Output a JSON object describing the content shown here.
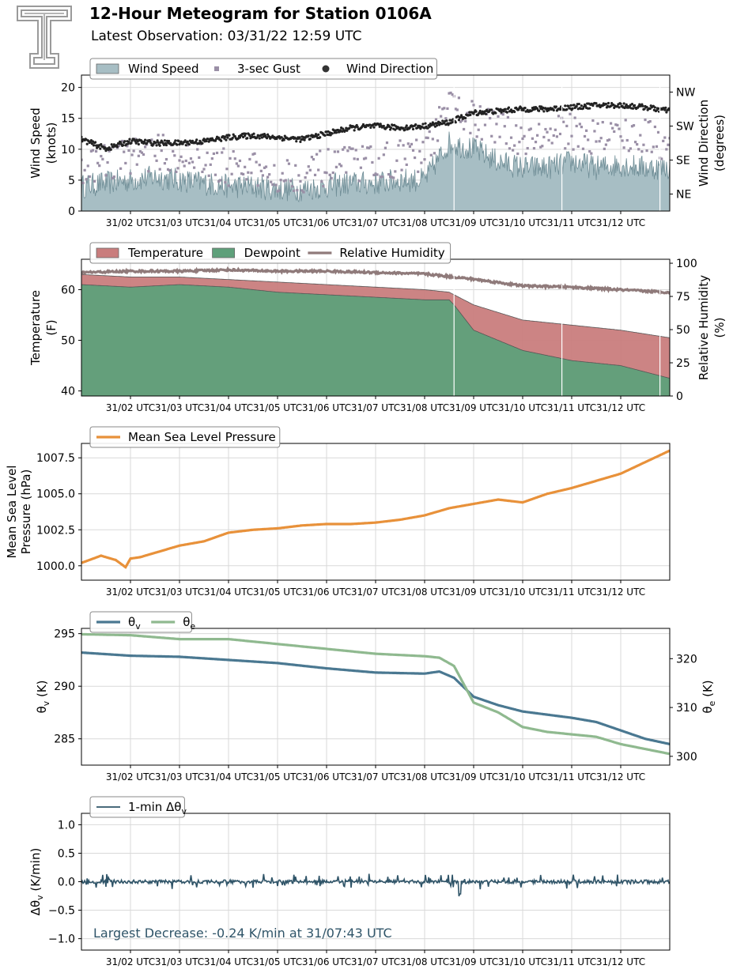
{
  "header": {
    "title": "12-Hour Meteogram for Station 0106A",
    "subtitle": "Latest Observation: 03/31/22 12:59 UTC",
    "logo": "texas-tech-double-t-logo"
  },
  "chart_data": [
    {
      "type": "area",
      "name": "wind",
      "ylabel": [
        "Wind Speed",
        "(knots)"
      ],
      "ylim": [
        0,
        22
      ],
      "yticks": [
        0,
        5,
        10,
        15,
        20
      ],
      "ylabel2": [
        "Wind Direction",
        "(degrees)"
      ],
      "y2lim": [
        0,
        360
      ],
      "y2ticks": [
        {
          "value": 45,
          "label": "NE"
        },
        {
          "value": 135,
          "label": "SE"
        },
        {
          "value": 225,
          "label": "SW"
        },
        {
          "value": 315,
          "label": "NW"
        }
      ],
      "legend": {
        "placement": "top-left",
        "entries": [
          {
            "label": "Wind Speed",
            "kind": "patch",
            "color": "#a7bec4"
          },
          {
            "label": "3-sec Gust",
            "kind": "square",
            "color": "#9a8fa6"
          },
          {
            "label": "Wind Direction",
            "kind": "dot",
            "color": "#333333"
          }
        ]
      },
      "series": [
        {
          "name": "Wind Speed",
          "color": "#a7bec4",
          "x": [
            0,
            0.5,
            1,
            1.5,
            2,
            2.5,
            3,
            3.5,
            4,
            4.5,
            5,
            5.5,
            6,
            6.5,
            7,
            7.5,
            8,
            8.5,
            9,
            9.5,
            10,
            10.5,
            11,
            11.5,
            12
          ],
          "values": [
            4,
            4.5,
            5,
            5.5,
            5,
            4.5,
            4,
            4,
            3.5,
            3.5,
            4,
            4.5,
            4.5,
            5,
            5,
            11,
            10,
            8,
            7,
            7,
            8,
            7,
            7.5,
            7,
            7
          ]
        },
        {
          "name": "3-sec Gust",
          "color": "#9a8fa6",
          "x": [
            0,
            0.5,
            1,
            1.5,
            2,
            2.5,
            3,
            3.5,
            4,
            4.5,
            5,
            5.5,
            6,
            6.5,
            7,
            7.5,
            8,
            8.5,
            9,
            9.5,
            10,
            10.5,
            11,
            11.5,
            12
          ],
          "values": [
            7,
            8,
            9,
            9.5,
            9,
            8,
            7,
            6.5,
            6,
            6,
            7,
            7.5,
            8,
            8.5,
            9,
            17,
            15,
            13,
            12,
            12,
            13,
            12,
            12.5,
            12,
            11
          ]
        },
        {
          "name": "Wind Direction",
          "color": "#222222",
          "x": [
            0,
            0.5,
            1,
            1.5,
            2,
            2.5,
            3,
            3.5,
            4,
            4.5,
            5,
            5.5,
            6,
            6.5,
            7,
            7.5,
            8,
            8.5,
            9,
            9.5,
            10,
            10.5,
            11,
            11.5,
            12
          ],
          "values": [
            190,
            165,
            185,
            180,
            180,
            185,
            195,
            200,
            195,
            190,
            205,
            220,
            225,
            220,
            225,
            235,
            260,
            265,
            270,
            270,
            275,
            280,
            280,
            275,
            265
          ]
        }
      ],
      "gaps": [
        7.6,
        9.8,
        11.8
      ]
    },
    {
      "type": "area",
      "name": "temperature",
      "ylabel": [
        "Temperature",
        "(F)"
      ],
      "ylim": [
        39,
        66
      ],
      "yticks": [
        40,
        50,
        60
      ],
      "ylabel2": [
        "Relative Humidity",
        "(%)"
      ],
      "y2lim": [
        0,
        103
      ],
      "y2ticks": [
        {
          "value": 0,
          "label": "0"
        },
        {
          "value": 25,
          "label": "25"
        },
        {
          "value": 50,
          "label": "50"
        },
        {
          "value": 75,
          "label": "75"
        },
        {
          "value": 100,
          "label": "100"
        }
      ],
      "legend": {
        "placement": "top-left",
        "entries": [
          {
            "label": "Temperature",
            "kind": "patch",
            "color": "#c97d7d"
          },
          {
            "label": "Dewpoint",
            "kind": "patch",
            "color": "#5ea07a"
          },
          {
            "label": "Relative Humidity",
            "kind": "line",
            "color": "#8f7a7a"
          }
        ]
      },
      "series": [
        {
          "name": "Temperature",
          "color": "#c97d7d",
          "x": [
            0,
            1,
            2,
            3,
            4,
            5,
            6,
            7,
            7.5,
            8,
            9,
            10,
            11,
            12
          ],
          "values": [
            63,
            62.5,
            62.5,
            62,
            61.5,
            61,
            60.5,
            60,
            59.5,
            57,
            54,
            53,
            52,
            50.5
          ]
        },
        {
          "name": "Dewpoint",
          "color": "#5ea07a",
          "x": [
            0,
            1,
            2,
            3,
            4,
            5,
            6,
            7,
            7.5,
            7.6,
            8,
            9,
            10,
            11,
            12
          ],
          "values": [
            61,
            60.5,
            61,
            60.5,
            59.5,
            59,
            58.5,
            58,
            58,
            57,
            52,
            48,
            46,
            45,
            42.5
          ]
        },
        {
          "name": "Relative Humidity",
          "color": "#8f7a7a",
          "x": [
            0,
            1,
            2,
            3,
            4,
            5,
            6,
            7,
            7.5,
            8,
            9,
            10,
            11,
            12
          ],
          "values": [
            93,
            94,
            94,
            95,
            94,
            94,
            93,
            92,
            90,
            88,
            83,
            82,
            80,
            78
          ]
        }
      ],
      "gaps": [
        7.6,
        9.8,
        11.8
      ]
    },
    {
      "type": "line",
      "name": "pressure",
      "ylabel": [
        "Mean Sea Level",
        "Pressure (hPa)"
      ],
      "ylim": [
        999.0,
        1008.5
      ],
      "yticks": [
        {
          "value": 1000,
          "label": "1000.0"
        },
        {
          "value": 1002.5,
          "label": "1002.5"
        },
        {
          "value": 1005,
          "label": "1005.0"
        },
        {
          "value": 1007.5,
          "label": "1007.5"
        }
      ],
      "legend": {
        "placement": "top-left",
        "entries": [
          {
            "label": "Mean Sea Level Pressure",
            "kind": "line",
            "color": "#e8913a"
          }
        ]
      },
      "series": [
        {
          "name": "Mean Sea Level Pressure",
          "color": "#e8913a",
          "x": [
            0,
            0.4,
            0.7,
            0.9,
            1.0,
            1.2,
            1.5,
            2,
            2.5,
            3,
            3.5,
            4,
            4.5,
            5,
            5.5,
            6,
            6.5,
            7,
            7.5,
            8,
            8.5,
            9,
            9.5,
            10,
            10.5,
            11,
            11.5,
            12
          ],
          "values": [
            1000.2,
            1000.7,
            1000.4,
            999.9,
            1000.5,
            1000.6,
            1000.9,
            1001.4,
            1001.7,
            1002.3,
            1002.5,
            1002.6,
            1002.8,
            1002.9,
            1002.9,
            1003.0,
            1003.2,
            1003.5,
            1004.0,
            1004.3,
            1004.6,
            1004.4,
            1005.0,
            1005.4,
            1005.9,
            1006.4,
            1007.2,
            1008.0
          ]
        }
      ]
    },
    {
      "type": "line",
      "name": "theta",
      "ylabel": [
        "θv (K)"
      ],
      "ylim": [
        282.5,
        295.5
      ],
      "yticks": [
        {
          "value": 285,
          "label": "285"
        },
        {
          "value": 290,
          "label": "290"
        },
        {
          "value": 295,
          "label": "295"
        }
      ],
      "ylabel2": [
        "θe (K)"
      ],
      "y2lim": [
        298.2,
        326.2
      ],
      "y2ticks": [
        {
          "value": 300,
          "label": "300"
        },
        {
          "value": 310,
          "label": "310"
        },
        {
          "value": 320,
          "label": "320"
        }
      ],
      "legend": {
        "placement": "top-left",
        "entries": [
          {
            "label": "θv",
            "kind": "line",
            "color": "#4a7891"
          },
          {
            "label": "θe",
            "kind": "line",
            "color": "#8fb98f"
          }
        ]
      },
      "series": [
        {
          "name": "θv",
          "color": "#4a7891",
          "axis": "left",
          "x": [
            0,
            1,
            2,
            3,
            4,
            5,
            6,
            7,
            7.3,
            7.6,
            8,
            8.5,
            9,
            9.5,
            10,
            10.5,
            11,
            11.5,
            12
          ],
          "values": [
            293.2,
            292.9,
            292.8,
            292.5,
            292.2,
            291.7,
            291.3,
            291.2,
            291.4,
            290.8,
            289.0,
            288.2,
            287.6,
            287.3,
            287.0,
            286.6,
            285.8,
            285.0,
            284.5
          ]
        },
        {
          "name": "θe",
          "color": "#8fb98f",
          "axis": "right",
          "x": [
            0,
            1,
            2,
            3,
            4,
            5,
            6,
            7,
            7.3,
            7.6,
            8,
            8.5,
            9,
            9.5,
            10,
            10.5,
            11,
            11.5,
            12
          ],
          "values": [
            325,
            324.8,
            324,
            324,
            323,
            322,
            321,
            320.5,
            320.2,
            318.5,
            311,
            309,
            306,
            305,
            304.5,
            304,
            302.5,
            301.5,
            300.5
          ]
        }
      ]
    },
    {
      "type": "line",
      "name": "dtheta",
      "ylabel": [
        "Δθv (K/min)"
      ],
      "ylim": [
        -1.2,
        1.2
      ],
      "yticks": [
        {
          "value": -1.0,
          "label": "−1.0"
        },
        {
          "value": -0.5,
          "label": "−0.5"
        },
        {
          "value": 0.0,
          "label": "0.0"
        },
        {
          "value": 0.5,
          "label": "0.5"
        },
        {
          "value": 1.0,
          "label": "1.0"
        }
      ],
      "legend": {
        "placement": "top-left",
        "entries": [
          {
            "label": "1-min Δθv",
            "kind": "line",
            "color": "#2f5468"
          }
        ]
      },
      "series": [
        {
          "name": "1-min Δθv",
          "color": "#2f5468",
          "x": [
            0,
            12
          ],
          "values": [
            0,
            0
          ]
        }
      ],
      "annotation": "Largest Decrease: -0.24 K/min at 31/07:43 UTC"
    }
  ],
  "xaxis": {
    "xlim": [
      0,
      12
    ],
    "ticks": [
      {
        "value": 1,
        "label": "31/02 UTC"
      },
      {
        "value": 2,
        "label": "31/03 UTC"
      },
      {
        "value": 3,
        "label": "31/04 UTC"
      },
      {
        "value": 4,
        "label": "31/05 UTC"
      },
      {
        "value": 5,
        "label": "31/06 UTC"
      },
      {
        "value": 6,
        "label": "31/07 UTC"
      },
      {
        "value": 7,
        "label": "31/08 UTC"
      },
      {
        "value": 8,
        "label": "31/09 UTC"
      },
      {
        "value": 9,
        "label": "31/10 UTC"
      },
      {
        "value": 10,
        "label": "31/11 UTC"
      },
      {
        "value": 11,
        "label": "31/12 UTC"
      }
    ],
    "grid": true
  }
}
